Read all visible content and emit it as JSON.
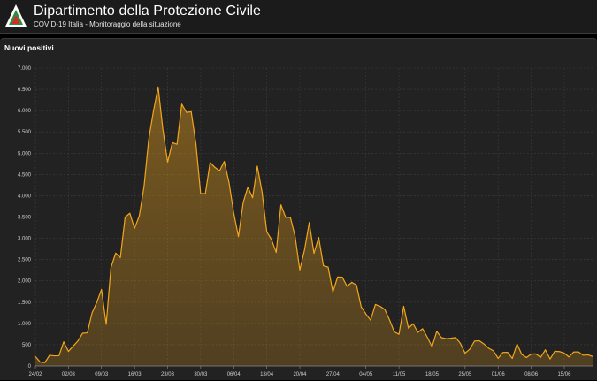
{
  "header": {
    "title": "Dipartimento della Protezione Civile",
    "subtitle": "COVID-19 Italia - Monitoraggio della situazione"
  },
  "panel": {
    "title": "Nuovi positivi"
  },
  "colors": {
    "accent": "#f2a61c",
    "header_bg": "#1b1b1b",
    "panel_bg": "#222222",
    "grid": "#3c3c3c",
    "logo_green": "#2c8f3e",
    "logo_red": "#d42a2a"
  },
  "chart_data": {
    "type": "area",
    "title": "Nuovi positivi",
    "ylim": [
      0,
      7000
    ],
    "yticks": [
      0,
      500,
      1000,
      1500,
      2000,
      2500,
      3000,
      3500,
      4000,
      4500,
      5000,
      5500,
      6000,
      6500,
      7000
    ],
    "ytick_labels": [
      "0",
      "500",
      "1.000",
      "1.500",
      "2.000",
      "2.500",
      "3.000",
      "3.500",
      "4.000",
      "4.500",
      "5.000",
      "5.500",
      "6.000",
      "6.500",
      "7.000"
    ],
    "xtick_labels": [
      "24/02",
      "02/03",
      "09/03",
      "16/03",
      "23/03",
      "30/03",
      "06/04",
      "13/04",
      "20/04",
      "27/04",
      "04/05",
      "11/05",
      "18/05",
      "25/05",
      "01/06",
      "08/06",
      "15/06"
    ],
    "xtick_step_days": 7,
    "grid": true,
    "series": [
      {
        "name": "Nuovi positivi",
        "start_date": "24/02",
        "values": [
          221,
          93,
          78,
          250,
          238,
          240,
          566,
          342,
          466,
          587,
          769,
          778,
          1247,
          1492,
          1797,
          977,
          2313,
          2651,
          2547,
          3497,
          3590,
          3233,
          3526,
          4207,
          5322,
          5986,
          6557,
          5560,
          4789,
          5249,
          5210,
          6153,
          5959,
          5974,
          5217,
          4050,
          4053,
          4782,
          4668,
          4585,
          4805,
          4316,
          3599,
          3039,
          3836,
          4204,
          3951,
          4694,
          4092,
          3153,
          2972,
          2667,
          3786,
          3493,
          3491,
          3047,
          2256,
          2729,
          3370,
          2646,
          3021,
          2357,
          2324,
          1739,
          2091,
          2086,
          1872,
          1965,
          1900,
          1389,
          1221,
          1075,
          1444,
          1401,
          1327,
          1083,
          802,
          744,
          1402,
          888,
          992,
          789,
          875,
          675,
          451,
          813,
          665,
          642,
          652,
          669,
          531,
          300,
          397,
          584,
          593,
          516,
          416,
          355,
          179,
          318,
          321,
          177,
          518,
          270,
          197,
          280,
          283,
          202,
          379,
          163,
          346,
          338,
          301,
          210,
          328,
          331,
          251,
          262,
          224
        ]
      }
    ]
  }
}
